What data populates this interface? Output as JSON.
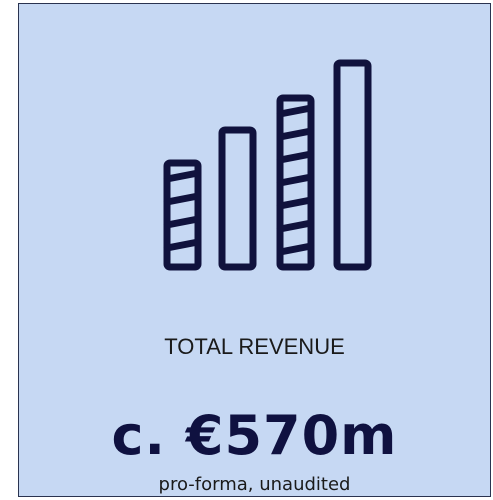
{
  "card": {
    "label": "TOTAL REVENUE",
    "value": "c. €570m",
    "note": "pro-forma, unaudited"
  }
}
